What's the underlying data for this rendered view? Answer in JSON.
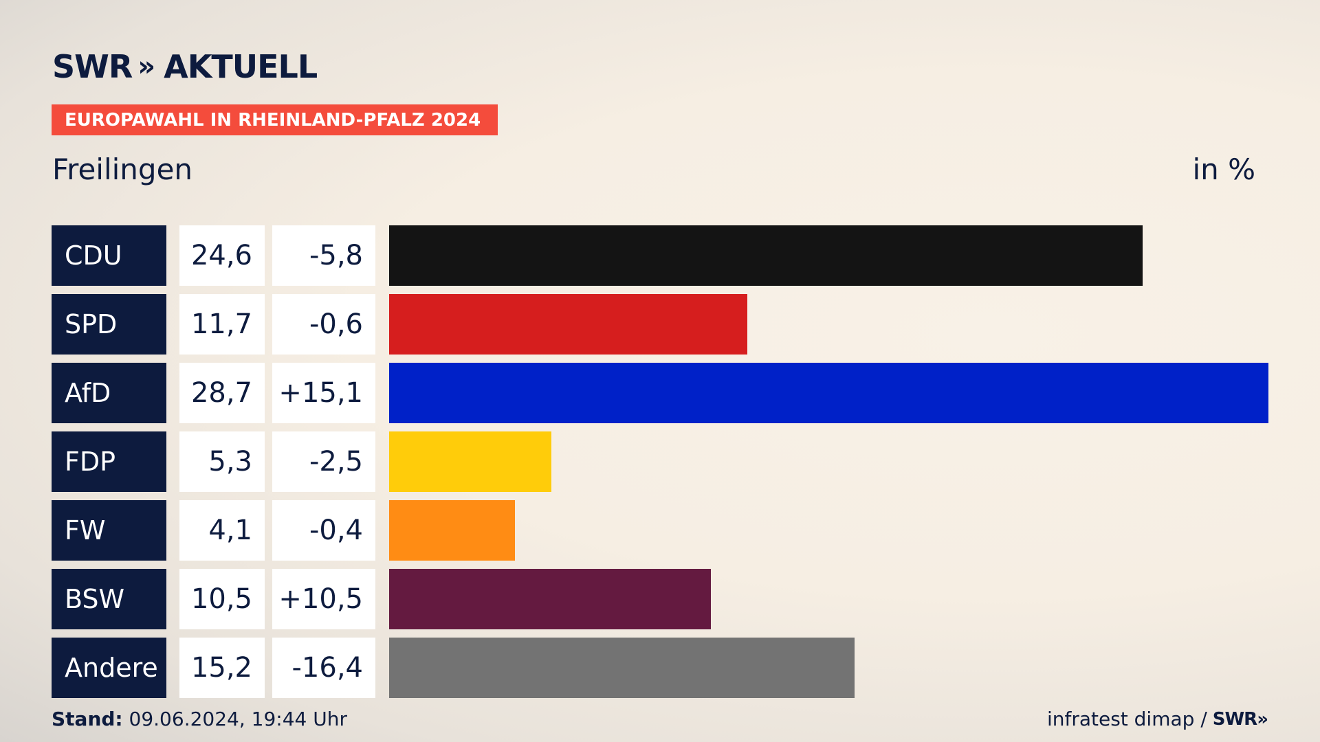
{
  "header": {
    "brand": "SWR",
    "brand_chevrons": "»",
    "section": "AKTUELL"
  },
  "badge": "EUROPAWAHL IN RHEINLAND-PFALZ 2024",
  "location": "Freilingen",
  "unit": "in %",
  "footer": {
    "stand_label": "Stand:",
    "stand_value": "09.06.2024, 19:44 Uhr",
    "source": "infratest dimap /",
    "source_brand": "SWR»"
  },
  "chart_data": {
    "type": "bar",
    "orientation": "horizontal",
    "categories": [
      "CDU",
      "SPD",
      "AfD",
      "FDP",
      "FW",
      "BSW",
      "Andere"
    ],
    "values_label": [
      "24,6",
      "11,7",
      "28,7",
      "5,3",
      "4,1",
      "10,5",
      "15,2"
    ],
    "diffs_label": [
      "-5,8",
      "-0,6",
      "+15,1",
      "-2,5",
      "-0,4",
      "+10,5",
      "-16,4"
    ],
    "values": [
      24.6,
      11.7,
      28.7,
      5.3,
      4.1,
      10.5,
      15.2
    ],
    "colors": [
      "#141414",
      "#d61e1e",
      "#0021c8",
      "#ffcc0a",
      "#ff8c14",
      "#641a40",
      "#737373"
    ],
    "xlim": [
      0,
      28.7
    ]
  }
}
